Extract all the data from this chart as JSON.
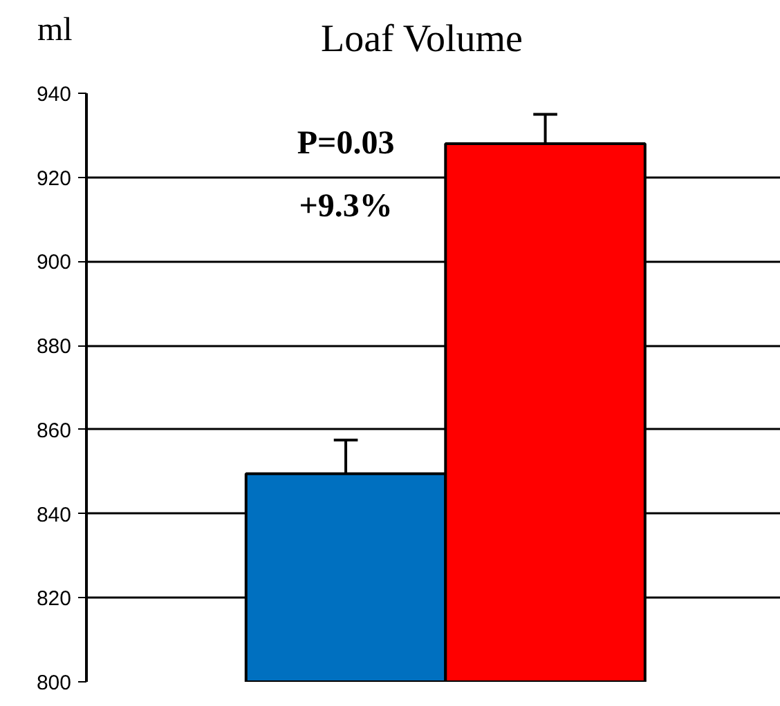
{
  "chart_data": {
    "type": "bar",
    "title": "Loaf Volume",
    "ylabel": "ml",
    "categories": [
      null,
      null
    ],
    "values": [
      849.5,
      928
    ],
    "colors": [
      "#0070c0",
      "#ff0000"
    ],
    "errors": [
      [
        849.5,
        857.5
      ],
      [
        928,
        935
      ]
    ],
    "ylim": [
      800,
      940
    ],
    "yticks": [
      800,
      820,
      840,
      860,
      880,
      900,
      920,
      940
    ],
    "grid": "y",
    "annotations": [
      "P=0.03",
      "+9.3%"
    ]
  }
}
